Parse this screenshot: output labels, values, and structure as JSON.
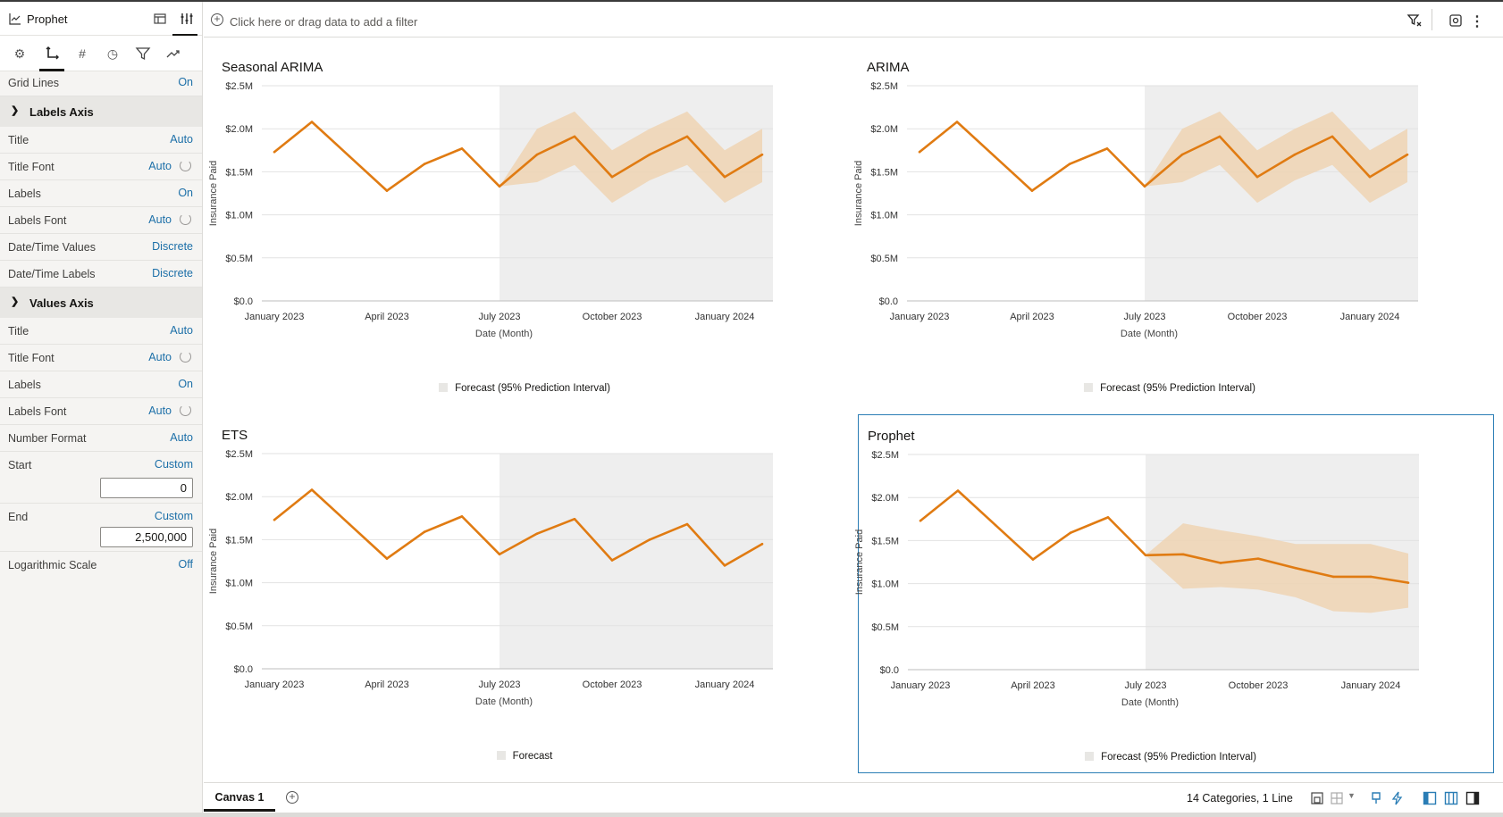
{
  "panel_header": {
    "title": "Prophet"
  },
  "properties": {
    "grid_lines": {
      "label": "Grid Lines",
      "value": "On"
    },
    "labels_axis": {
      "heading": "Labels Axis",
      "rows": [
        {
          "label": "Title",
          "value": "Auto"
        },
        {
          "label": "Title Font",
          "value": "Auto"
        },
        {
          "label": "Labels",
          "value": "On"
        },
        {
          "label": "Labels Font",
          "value": "Auto"
        },
        {
          "label": "Date/Time Values",
          "value": "Discrete"
        },
        {
          "label": "Date/Time Labels",
          "value": "Discrete"
        }
      ]
    },
    "values_axis": {
      "heading": "Values Axis",
      "rows": [
        {
          "label": "Title",
          "value": "Auto"
        },
        {
          "label": "Title Font",
          "value": "Auto"
        },
        {
          "label": "Labels",
          "value": "On"
        },
        {
          "label": "Labels Font",
          "value": "Auto"
        },
        {
          "label": "Number Format",
          "value": "Auto"
        },
        {
          "label": "Start",
          "value": "Custom",
          "input": "0"
        },
        {
          "label": "End",
          "value": "Custom",
          "input": "2,500,000"
        },
        {
          "label": "Logarithmic Scale",
          "value": "Off"
        }
      ]
    }
  },
  "filter": {
    "placeholder": "Click here or drag data to add a filter"
  },
  "footer": {
    "canvas_tab": "Canvas 1",
    "summary": "14 Categories, 1 Line"
  },
  "colors": {
    "line": "#e07b12",
    "band": "#efd3b3",
    "forecast_bg": "#eeeeee",
    "grid": "#e2e2e2",
    "selected": "#2a7db5"
  },
  "chart_data": [
    {
      "type": "line",
      "title": "Seasonal ARIMA",
      "xlabel": "Date (Month)",
      "ylabel": "Insurance Paid",
      "categories": [
        "2023-01",
        "2023-02",
        "2023-03",
        "2023-04",
        "2023-05",
        "2023-06",
        "2023-07",
        "2023-08",
        "2023-09",
        "2023-10",
        "2023-11",
        "2023-12",
        "2024-01",
        "2024-02"
      ],
      "x_ticks": [
        "January 2023",
        "April 2023",
        "July 2023",
        "October 2023",
        "January 2024"
      ],
      "y_ticks": [
        "$2.5M",
        "$2.0M",
        "$1.5M",
        "$1.0M",
        "$0.5M",
        "$0.0"
      ],
      "ylim": [
        0,
        2500000
      ],
      "forecast_start": "2023-07",
      "values": [
        1730000,
        2080000,
        1680000,
        1280000,
        1590000,
        1770000,
        1330000,
        1700000,
        1910000,
        1440000,
        1700000,
        1910000,
        1440000,
        1700000
      ],
      "interval_lower": [
        null,
        null,
        null,
        null,
        null,
        null,
        1330000,
        1380000,
        1580000,
        1140000,
        1400000,
        1580000,
        1140000,
        1380000
      ],
      "interval_upper": [
        null,
        null,
        null,
        null,
        null,
        null,
        1330000,
        2000000,
        2200000,
        1750000,
        2000000,
        2200000,
        1750000,
        2000000
      ],
      "legend": "Forecast (95% Prediction Interval)",
      "grid": true
    },
    {
      "type": "line",
      "title": "ARIMA",
      "xlabel": "Date (Month)",
      "ylabel": "Insurance Paid",
      "categories": [
        "2023-01",
        "2023-02",
        "2023-03",
        "2023-04",
        "2023-05",
        "2023-06",
        "2023-07",
        "2023-08",
        "2023-09",
        "2023-10",
        "2023-11",
        "2023-12",
        "2024-01",
        "2024-02"
      ],
      "x_ticks": [
        "January 2023",
        "April 2023",
        "July 2023",
        "October 2023",
        "January 2024"
      ],
      "y_ticks": [
        "$2.5M",
        "$2.0M",
        "$1.5M",
        "$1.0M",
        "$0.5M",
        "$0.0"
      ],
      "ylim": [
        0,
        2500000
      ],
      "forecast_start": "2023-07",
      "values": [
        1730000,
        2080000,
        1680000,
        1280000,
        1590000,
        1770000,
        1330000,
        1700000,
        1910000,
        1440000,
        1700000,
        1910000,
        1440000,
        1700000
      ],
      "interval_lower": [
        null,
        null,
        null,
        null,
        null,
        null,
        1330000,
        1380000,
        1580000,
        1140000,
        1400000,
        1580000,
        1140000,
        1380000
      ],
      "interval_upper": [
        null,
        null,
        null,
        null,
        null,
        null,
        1330000,
        2000000,
        2200000,
        1750000,
        2000000,
        2200000,
        1750000,
        2000000
      ],
      "legend": "Forecast (95% Prediction Interval)",
      "grid": true
    },
    {
      "type": "line",
      "title": "ETS",
      "xlabel": "Date (Month)",
      "ylabel": "Insurance Paid",
      "categories": [
        "2023-01",
        "2023-02",
        "2023-03",
        "2023-04",
        "2023-05",
        "2023-06",
        "2023-07",
        "2023-08",
        "2023-09",
        "2023-10",
        "2023-11",
        "2023-12",
        "2024-01",
        "2024-02"
      ],
      "x_ticks": [
        "January 2023",
        "April 2023",
        "July 2023",
        "October 2023",
        "January 2024"
      ],
      "y_ticks": [
        "$2.5M",
        "$2.0M",
        "$1.5M",
        "$1.0M",
        "$0.5M",
        "$0.0"
      ],
      "ylim": [
        0,
        2500000
      ],
      "forecast_start": "2023-07",
      "values": [
        1730000,
        2080000,
        1680000,
        1280000,
        1590000,
        1770000,
        1330000,
        1570000,
        1740000,
        1260000,
        1500000,
        1680000,
        1200000,
        1450000
      ],
      "legend": "Forecast",
      "grid": true
    },
    {
      "type": "line",
      "title": "Prophet",
      "xlabel": "Date (Month)",
      "ylabel": "Insurance Paid",
      "categories": [
        "2023-01",
        "2023-02",
        "2023-03",
        "2023-04",
        "2023-05",
        "2023-06",
        "2023-07",
        "2023-08",
        "2023-09",
        "2023-10",
        "2023-11",
        "2023-12",
        "2024-01",
        "2024-02"
      ],
      "x_ticks": [
        "January 2023",
        "April 2023",
        "July 2023",
        "October 2023",
        "January 2024"
      ],
      "y_ticks": [
        "$2.5M",
        "$2.0M",
        "$1.5M",
        "$1.0M",
        "$0.5M",
        "$0.0"
      ],
      "ylim": [
        0,
        2500000
      ],
      "forecast_start": "2023-07",
      "values": [
        1730000,
        2080000,
        1680000,
        1280000,
        1590000,
        1770000,
        1330000,
        1340000,
        1240000,
        1290000,
        1180000,
        1080000,
        1080000,
        1010000
      ],
      "interval_lower": [
        null,
        null,
        null,
        null,
        null,
        null,
        1330000,
        940000,
        960000,
        930000,
        840000,
        680000,
        660000,
        720000
      ],
      "interval_upper": [
        null,
        null,
        null,
        null,
        null,
        null,
        1330000,
        1700000,
        1620000,
        1550000,
        1460000,
        1460000,
        1460000,
        1350000
      ],
      "legend": "Forecast (95% Prediction Interval)",
      "grid": true,
      "selected": true
    }
  ]
}
